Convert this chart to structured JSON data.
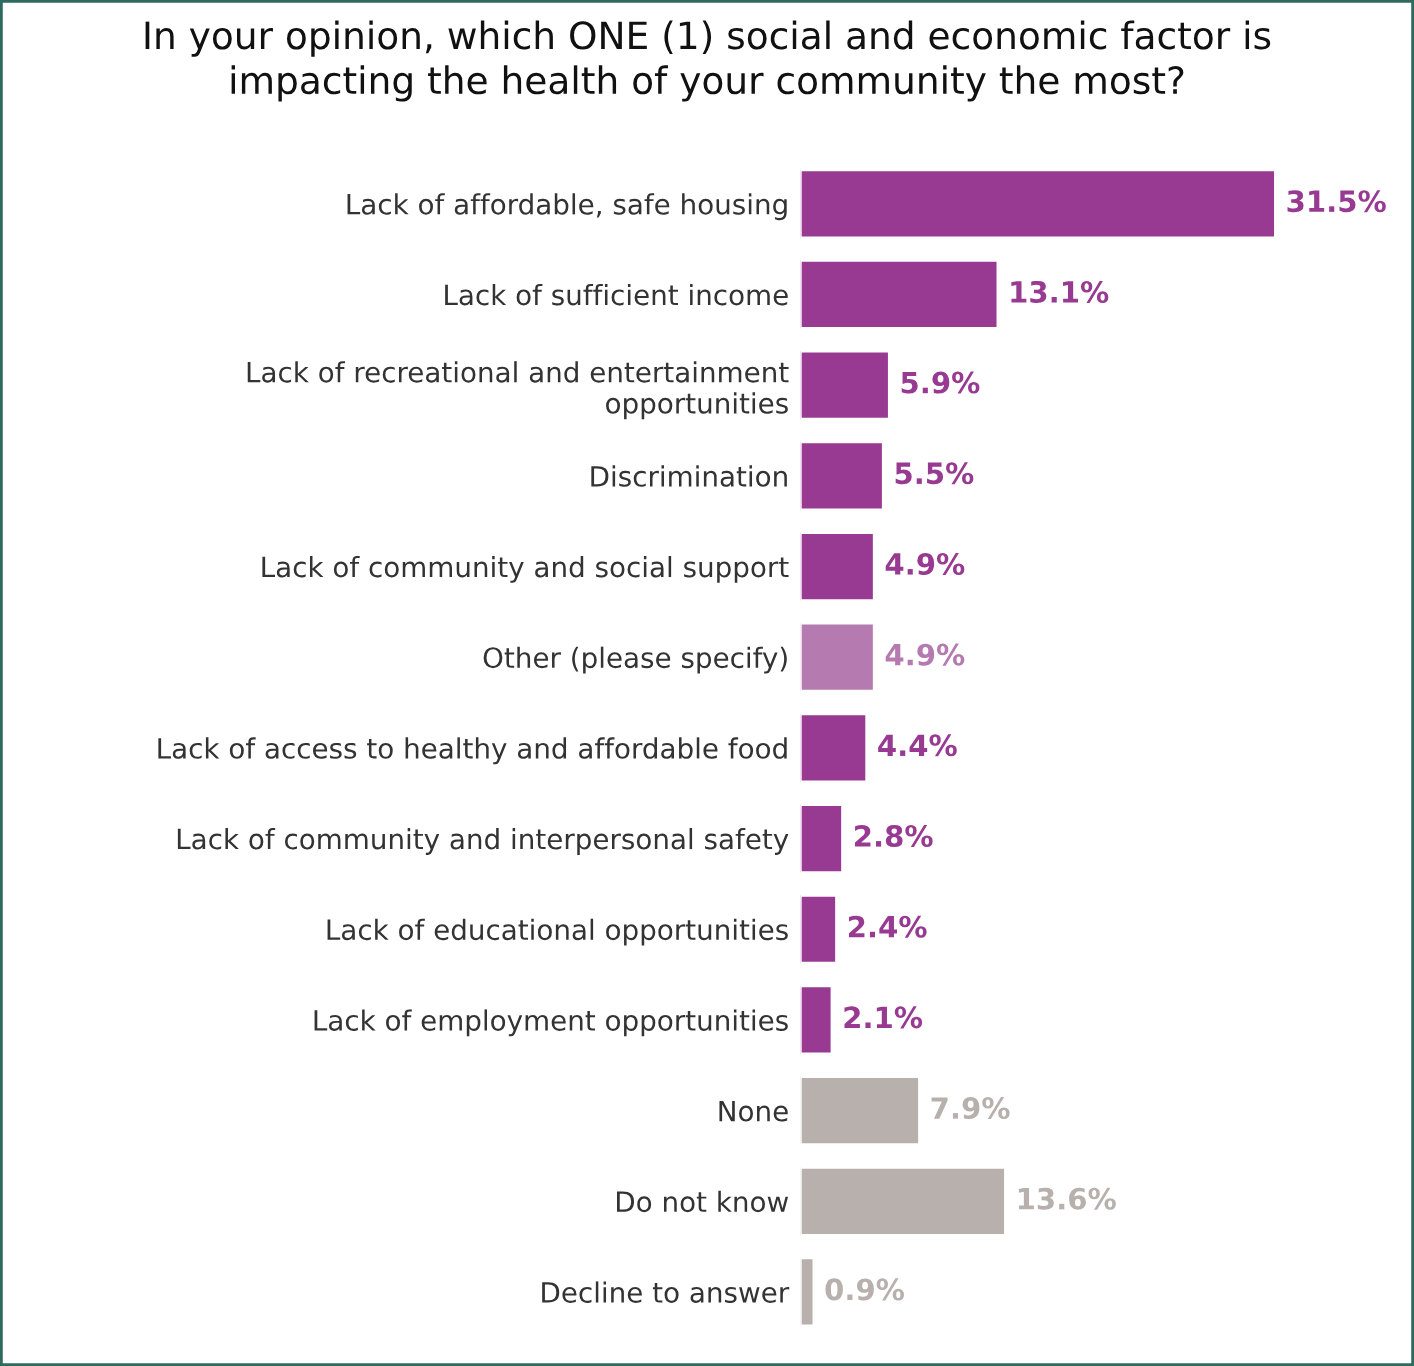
{
  "chart_data": {
    "type": "bar",
    "orientation": "horizontal",
    "title": "In your opinion, which ONE (1) social and economic factor is\nimpacting the health of your community the most?",
    "categories": [
      "Lack of affordable, safe housing",
      "Lack of sufficient income",
      "Lack of recreational and entertainment\nopportunities",
      "Discrimination",
      "Lack of community and social support",
      "Other (please specify)",
      "Lack of access to healthy and affordable food",
      "Lack of community and interpersonal safety",
      "Lack of educational opportunities",
      "Lack of employment opportunities",
      "None",
      "Do not know",
      "Decline to answer"
    ],
    "values": [
      31.5,
      13.1,
      5.9,
      5.5,
      4.9,
      4.9,
      4.4,
      2.8,
      2.4,
      2.1,
      7.9,
      13.6,
      0.9
    ],
    "colors": [
      "#983a91",
      "#983a91",
      "#983a91",
      "#983a91",
      "#983a91",
      "#b57bb0",
      "#983a91",
      "#983a91",
      "#983a91",
      "#983a91",
      "#b8b0ac",
      "#b8b0ac",
      "#b8b0ac"
    ],
    "value_labels": [
      "31.5%",
      "13.1%",
      "5.9%",
      "5.5%",
      "4.9%",
      "4.9%",
      "4.4%",
      "2.8%",
      "2.4%",
      "2.1%",
      "7.9%",
      "13.6%",
      "0.9%"
    ]
  }
}
